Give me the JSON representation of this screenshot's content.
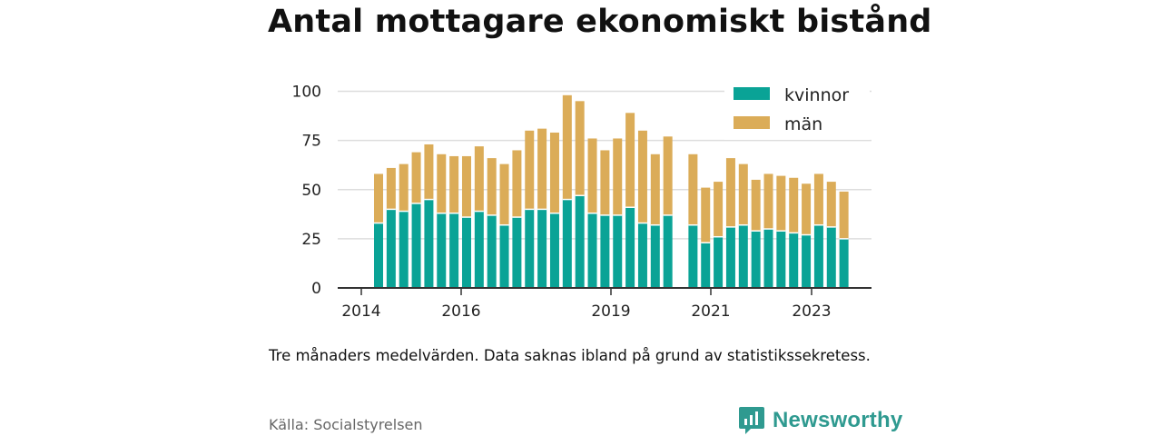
{
  "title": "Antal mottagare ekonomiskt bistånd",
  "caption": "Tre månaders medelvärden. Data saknas ibland på grund av statistikssekretess.",
  "source": "Källa: Socialstyrelsen",
  "brand": "Newsworthy",
  "colors": {
    "kvinnor": "#0aa396",
    "man": "#dbac58",
    "brand": "#2f9a90"
  },
  "chart_data": {
    "type": "bar",
    "stacked": true,
    "x_ticks": [
      "2014",
      "2016",
      "2019",
      "2021",
      "2023"
    ],
    "y_ticks": [
      0,
      25,
      50,
      75,
      100
    ],
    "ylim": [
      0,
      100
    ],
    "grid": true,
    "legend": "top-right",
    "series": [
      {
        "name": "kvinnor",
        "values": [
          33,
          40,
          39,
          43,
          45,
          38,
          38,
          36,
          39,
          37,
          32,
          36,
          40,
          40,
          38,
          45,
          47,
          38,
          37,
          37,
          41,
          33,
          32,
          37,
          null,
          32,
          23,
          26,
          31,
          32,
          29,
          30,
          29,
          28,
          27,
          32,
          31,
          25
        ]
      },
      {
        "name": "män",
        "values": [
          25,
          21,
          24,
          26,
          28,
          30,
          29,
          31,
          33,
          29,
          31,
          34,
          40,
          41,
          41,
          53,
          48,
          38,
          33,
          39,
          48,
          47,
          36,
          40,
          null,
          36,
          28,
          28,
          35,
          31,
          26,
          28,
          28,
          28,
          26,
          26,
          23,
          24
        ]
      }
    ]
  }
}
